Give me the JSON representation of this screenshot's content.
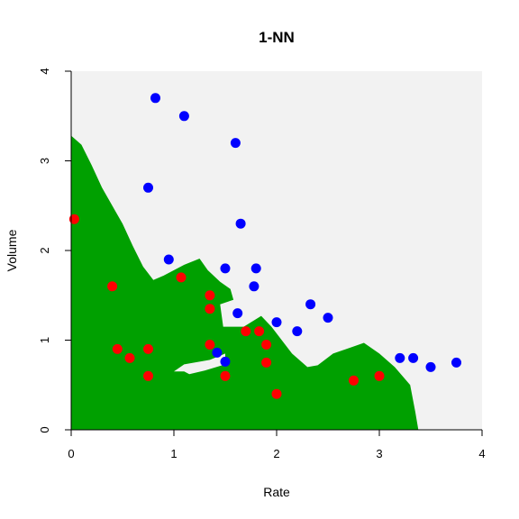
{
  "chart_data": {
    "type": "scatter",
    "title": "1-NN",
    "xlabel": "Rate",
    "ylabel": "Volume",
    "xlim": [
      0,
      4
    ],
    "ylim": [
      0,
      4
    ],
    "xticks": [
      "0",
      "1",
      "2",
      "3",
      "4"
    ],
    "yticks": [
      "0",
      "1",
      "2",
      "3",
      "4"
    ],
    "grid": false,
    "legend": "none",
    "colors": {
      "class_a": "#0000ff",
      "class_b": "#ff0000",
      "region_a": "#f2f2f2",
      "region_b": "#00a000"
    },
    "series": [
      {
        "color": "#0000ff",
        "points": [
          [
            0.82,
            3.7
          ],
          [
            1.1,
            3.5
          ],
          [
            1.6,
            3.2
          ],
          [
            0.75,
            2.7
          ],
          [
            1.65,
            2.3
          ],
          [
            0.95,
            1.9
          ],
          [
            1.5,
            1.8
          ],
          [
            1.8,
            1.8
          ],
          [
            1.78,
            1.6
          ],
          [
            1.62,
            1.3
          ],
          [
            2.0,
            1.2
          ],
          [
            2.33,
            1.4
          ],
          [
            2.5,
            1.25
          ],
          [
            2.2,
            1.1
          ],
          [
            1.42,
            0.86
          ],
          [
            1.5,
            0.76
          ],
          [
            3.2,
            0.8
          ],
          [
            3.33,
            0.8
          ],
          [
            3.5,
            0.7
          ],
          [
            3.75,
            0.75
          ]
        ]
      },
      {
        "color": "#ff0000",
        "points": [
          [
            0.03,
            2.35
          ],
          [
            0.4,
            1.6
          ],
          [
            1.07,
            1.7
          ],
          [
            1.35,
            1.5
          ],
          [
            1.35,
            1.35
          ],
          [
            0.45,
            0.9
          ],
          [
            0.57,
            0.8
          ],
          [
            0.75,
            0.9
          ],
          [
            0.75,
            0.6
          ],
          [
            1.35,
            0.95
          ],
          [
            1.5,
            0.6
          ],
          [
            1.7,
            1.1
          ],
          [
            1.83,
            1.1
          ],
          [
            1.9,
            0.95
          ],
          [
            1.9,
            0.75
          ],
          [
            2.0,
            0.4
          ],
          [
            2.75,
            0.55
          ],
          [
            3.0,
            0.6
          ]
        ]
      }
    ],
    "decision_region": {
      "color": "#00a000",
      "outline": [
        [
          0.0,
          3.28
        ],
        [
          0.1,
          3.18
        ],
        [
          0.2,
          2.95
        ],
        [
          0.3,
          2.7
        ],
        [
          0.4,
          2.5
        ],
        [
          0.5,
          2.3
        ],
        [
          0.6,
          2.05
        ],
        [
          0.7,
          1.82
        ],
        [
          0.8,
          1.67
        ],
        [
          0.9,
          1.72
        ],
        [
          1.0,
          1.78
        ],
        [
          1.1,
          1.84
        ],
        [
          1.25,
          1.91
        ],
        [
          1.33,
          1.78
        ],
        [
          1.45,
          1.65
        ],
        [
          1.55,
          1.57
        ],
        [
          1.58,
          1.45
        ],
        [
          1.45,
          1.4
        ],
        [
          1.48,
          1.15
        ],
        [
          1.68,
          1.15
        ],
        [
          1.85,
          1.27
        ],
        [
          1.95,
          1.15
        ],
        [
          2.05,
          1.0
        ],
        [
          2.15,
          0.85
        ],
        [
          2.3,
          0.7
        ],
        [
          2.4,
          0.72
        ],
        [
          2.55,
          0.85
        ],
        [
          2.75,
          0.93
        ],
        [
          2.85,
          0.97
        ],
        [
          3.0,
          0.85
        ],
        [
          3.15,
          0.7
        ],
        [
          3.3,
          0.5
        ],
        [
          3.35,
          0.2
        ],
        [
          3.38,
          0.0
        ],
        [
          0.0,
          0.0
        ]
      ],
      "hole": [
        [
          1.1,
          0.73
        ],
        [
          1.35,
          0.78
        ],
        [
          1.5,
          0.85
        ],
        [
          1.5,
          0.73
        ],
        [
          1.3,
          0.66
        ],
        [
          1.15,
          0.62
        ],
        [
          1.1,
          0.65
        ],
        [
          1.0,
          0.65
        ],
        [
          1.1,
          0.73
        ]
      ]
    }
  }
}
